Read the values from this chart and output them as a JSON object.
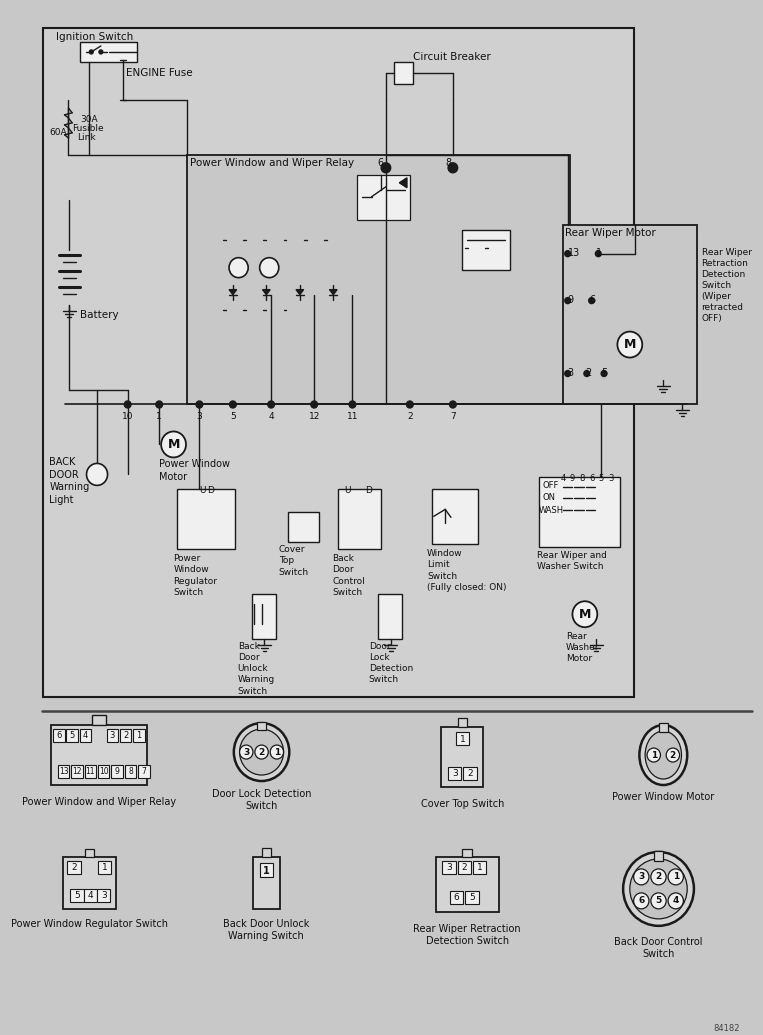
{
  "bg_color": "#c8c8c8",
  "line_color": "#1a1a1a",
  "text_color": "#111111",
  "diagram_bg": "#d0d0d0",
  "relay_box_bg": "#cccccc",
  "component_bg": "#e0e0e0",
  "white": "#f0f0f0",
  "connector_bg": "#d4d4d4",
  "labels": {
    "ignition_switch": "Ignition Switch",
    "engine_fuse": "ENGINE Fuse",
    "circuit_breaker": "Circuit Breaker",
    "fusible_30a": "30A\nFusible\nLink",
    "fusible_60a": "60A",
    "battery": "Battery",
    "pw_relay": "Power Window and Wiper Relay",
    "rear_wiper_motor": "Rear Wiper Motor",
    "rear_wiper_retract": "Rear Wiper\nRetraction\nDetection\nSwitch\n(Wiper\nretracted\nOFF)",
    "back_door_warning": "BACK\nDOOR\nWarning\nLight",
    "pw_motor": "Power Window\nMotor",
    "pw_regulator": "Power\nWindow\nRegulator\nSwitch",
    "cover_top": "Cover\nTop\nSwitch",
    "back_door_control": "Back\nDoor\nControl\nSwitch",
    "window_limit": "Window\nLimit\nSwitch\n(Fully closed: ON)",
    "rear_wiper_washer": "Rear Wiper and\nWasher Switch",
    "back_door_unlock": "Back\nDoor\nUnlock\nWarning\nSwitch",
    "door_lock_detect": "Door\nLock\nDetection\nSwitch",
    "rear_washer_motor": "Rear\nWasher\nMotor",
    "conn1_name": "Power Window and Wiper Relay",
    "conn2_name": "Door Lock Detection\nSwitch",
    "conn3_name": "Cover Top Switch",
    "conn4_name": "Power Window Motor",
    "conn5_name": "Power Window Regulator Switch",
    "conn6_name": "Back Door Unlock\nWarning Switch",
    "conn7_name": "Rear Wiper Retraction\nDetection Switch",
    "conn8_name": "Back Door Control\nSwitch",
    "part_number": "84182"
  }
}
